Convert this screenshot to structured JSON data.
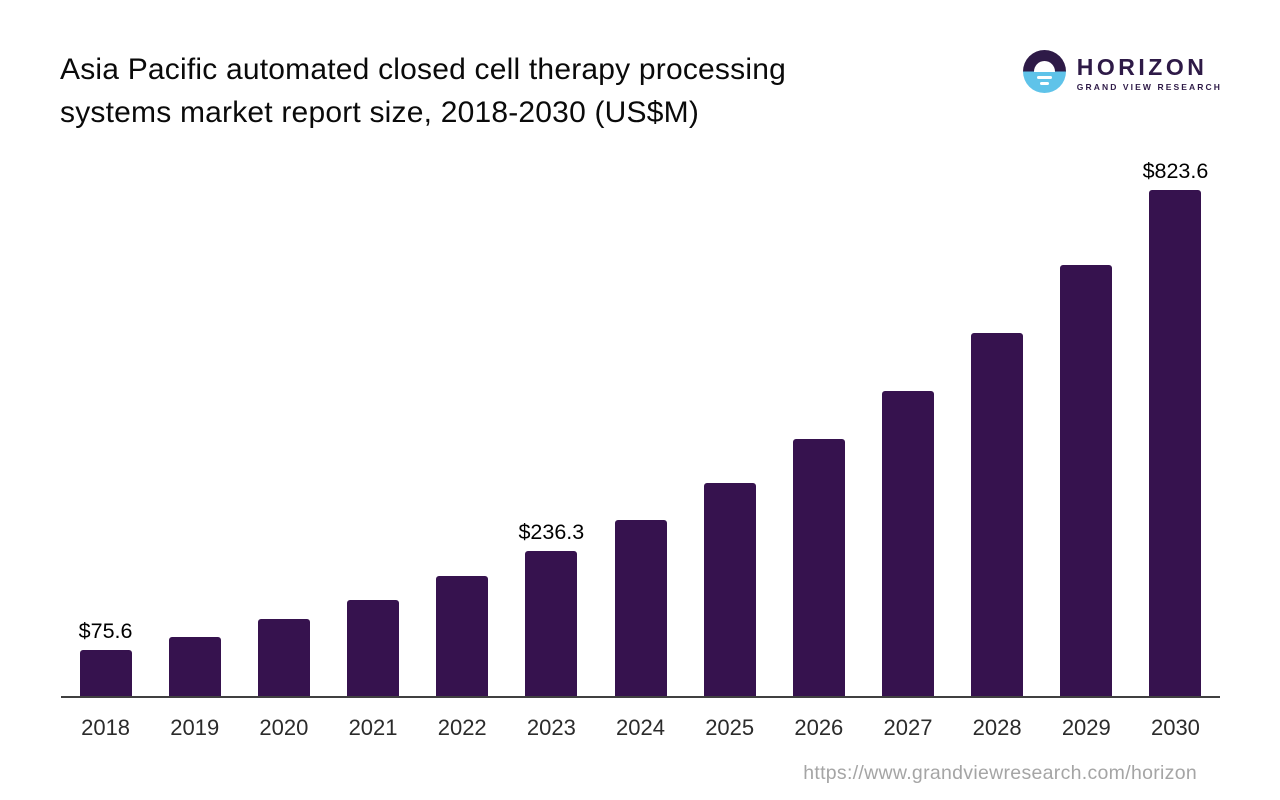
{
  "header": {
    "title_line1": "Asia Pacific automated closed cell therapy processing",
    "title_line2": "systems market report size, 2018-2030 (US$M)"
  },
  "logo": {
    "brand": "HORIZON",
    "subtitle": "GRAND VIEW RESEARCH",
    "icon": "sunrise-circle-icon",
    "purple": "#2E1A47",
    "blue": "#5FC3E9"
  },
  "chart_data": {
    "type": "bar",
    "title": "Asia Pacific automated closed cell therapy processing systems market report size, 2018-2030 (US$M)",
    "categories": [
      "2018",
      "2019",
      "2020",
      "2021",
      "2022",
      "2023",
      "2024",
      "2025",
      "2026",
      "2027",
      "2028",
      "2029",
      "2030"
    ],
    "values": [
      75.6,
      96.5,
      125.4,
      157.1,
      195.7,
      236.3,
      286.0,
      346.6,
      417.8,
      496.6,
      591.7,
      702.4,
      823.6
    ],
    "data_labels": [
      "$75.6",
      "",
      "",
      "",
      "",
      "$236.3",
      "",
      "",
      "",
      "",
      "",
      "",
      "$823.6"
    ],
    "xlabel": "",
    "ylabel": "",
    "ylim": [
      0,
      823.6
    ],
    "grid": false,
    "legend": "none",
    "bar_color": "#36124E",
    "axis_color": "#404040"
  },
  "footer": {
    "url": "https://www.grandviewresearch.com/horizon"
  }
}
